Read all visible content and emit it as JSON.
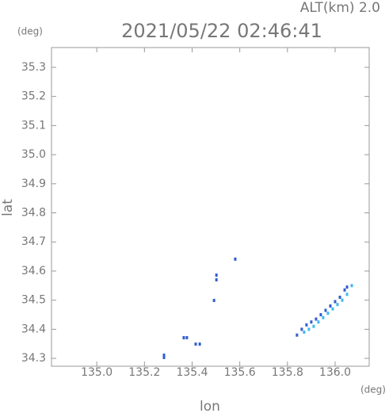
{
  "chart_data": {
    "type": "scatter",
    "header": "ALT(km) 2.0",
    "title": "2021/05/22 02:46:41",
    "y_unit": "(deg)",
    "x_unit": "(deg)",
    "y_label": "lat",
    "x_label": "lon",
    "xlim": [
      134.81,
      136.143
    ],
    "ylim": [
      34.273,
      35.368
    ],
    "xticks": [
      {
        "value": 135.0,
        "label": "135.0"
      },
      135.2,
      135.4,
      135.6,
      135.8,
      {
        "value": 136.0,
        "label": "136.0"
      }
    ],
    "yticks": [
      34.3,
      34.4,
      34.5,
      34.6,
      34.7,
      34.8,
      34.9,
      {
        "value": 35.0,
        "label": "35.0"
      },
      35.1,
      35.2,
      35.3
    ],
    "series": [
      {
        "color": "#2f5fd0",
        "x": [
          135.282,
          135.282,
          135.365,
          135.378,
          135.415,
          135.432,
          135.502,
          135.502,
          135.492,
          135.581,
          135.84,
          135.86,
          135.88,
          135.9,
          135.92,
          135.94,
          135.96,
          135.98,
          136.0,
          136.02,
          136.04,
          136.05
        ],
        "y": [
          34.311,
          34.303,
          34.371,
          34.371,
          34.349,
          34.349,
          34.586,
          34.57,
          34.499,
          34.641,
          34.38,
          34.4,
          34.415,
          34.425,
          34.435,
          34.45,
          34.465,
          34.48,
          34.495,
          34.51,
          34.535,
          34.545
        ]
      },
      {
        "color": "#3fb8f0",
        "x": [
          135.87,
          135.89,
          135.91,
          135.93,
          135.95,
          135.97,
          135.99,
          136.01,
          136.03,
          136.05,
          136.07
        ],
        "y": [
          34.39,
          34.4,
          34.41,
          34.425,
          34.44,
          34.455,
          34.47,
          34.485,
          34.5,
          34.52,
          34.55
        ]
      }
    ]
  }
}
